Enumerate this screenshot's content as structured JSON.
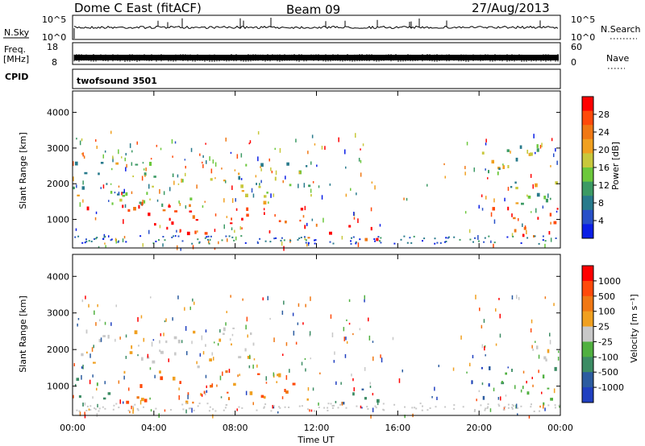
{
  "header": {
    "station": "Dome C East (fitACF)",
    "beam": "Beam 09",
    "date": "27/Aug/2013"
  },
  "status_panels": {
    "nsky_label": "N.Sky",
    "nsky_ticks": [
      "10^5",
      "10^0"
    ],
    "nsearch_label": "N.Search",
    "nsearch_ticks": [
      "10^5",
      "10^0"
    ],
    "freq_label_1": "Freq.",
    "freq_label_2": "[MHz]",
    "freq_ticks": [
      "18",
      "8"
    ],
    "nave_label": "Nave",
    "nave_ticks": [
      "60",
      "0"
    ],
    "cpid_label": "CPID",
    "cpid_value": "twofsound 3501"
  },
  "chart_data": [
    {
      "type": "heatmap",
      "name": "power",
      "ylabel": "Slant Range [km]",
      "xlabel": "",
      "x_ticks": [
        "00:00",
        "04:00",
        "08:00",
        "12:00",
        "16:00",
        "20:00",
        "00:00"
      ],
      "y_ticks": [
        "1000",
        "2000",
        "3000",
        "4000"
      ],
      "ylim": [
        200,
        4600
      ],
      "colorbar": {
        "label": "Power [dB]",
        "ticks": [
          "28",
          "24",
          "20",
          "16",
          "12",
          "8",
          "4"
        ],
        "colors": [
          "#0a1ee6",
          "#2850c8",
          "#287a8c",
          "#3c9a64",
          "#6cc83c",
          "#c8c83c",
          "#f0a020",
          "#f07814",
          "#ff4a0a",
          "#ff0000"
        ]
      },
      "regions": [
        {
          "t": [
            0.0,
            11.5
          ],
          "r": [
            600,
            1400
          ],
          "level": "high"
        },
        {
          "t": [
            11.5,
            15.0
          ],
          "r": [
            400,
            900
          ],
          "level": "high"
        },
        {
          "t": [
            20.3,
            24.0
          ],
          "r": [
            500,
            1400
          ],
          "level": "high"
        },
        {
          "t": [
            0.0,
            12.0
          ],
          "r": [
            1400,
            2600
          ],
          "level": "mid"
        },
        {
          "t": [
            20.0,
            24.0
          ],
          "r": [
            1300,
            3100
          ],
          "level": "mid"
        }
      ]
    },
    {
      "type": "heatmap",
      "name": "velocity",
      "ylabel": "Slant Range [km]",
      "xlabel": "Time UT",
      "x_ticks": [
        "00:00",
        "04:00",
        "08:00",
        "12:00",
        "16:00",
        "20:00",
        "00:00"
      ],
      "y_ticks": [
        "1000",
        "2000",
        "3000",
        "4000"
      ],
      "ylim": [
        200,
        4600
      ],
      "colorbar": {
        "label": "Velocity [m s⁻¹]",
        "ticks": [
          "1000",
          "500",
          "100",
          "25",
          "-25",
          "-100",
          "-500",
          "-1000"
        ],
        "colors": [
          "#2040c0",
          "#2c5ca0",
          "#3c8c64",
          "#50b040",
          "#c8c8c8",
          "#f0a020",
          "#f07814",
          "#ff4a0a",
          "#ff0000"
        ]
      },
      "regions": [
        {
          "t": [
            0.0,
            2.5
          ],
          "r": [
            500,
            1200
          ],
          "v": "green"
        },
        {
          "t": [
            2.5,
            12.0
          ],
          "r": [
            500,
            1400
          ],
          "v": "orange"
        },
        {
          "t": [
            12.0,
            15.0
          ],
          "r": [
            400,
            900
          ],
          "v": "teal"
        },
        {
          "t": [
            0.0,
            9.0
          ],
          "r": [
            1500,
            2600
          ],
          "v": "grey"
        },
        {
          "t": [
            20.0,
            21.0
          ],
          "r": [
            600,
            1700
          ],
          "v": "blue"
        },
        {
          "t": [
            21.0,
            24.0
          ],
          "r": [
            400,
            1500
          ],
          "v": "green"
        },
        {
          "t": [
            22.0,
            24.0
          ],
          "r": [
            1600,
            2200
          ],
          "v": "grey"
        }
      ]
    }
  ]
}
